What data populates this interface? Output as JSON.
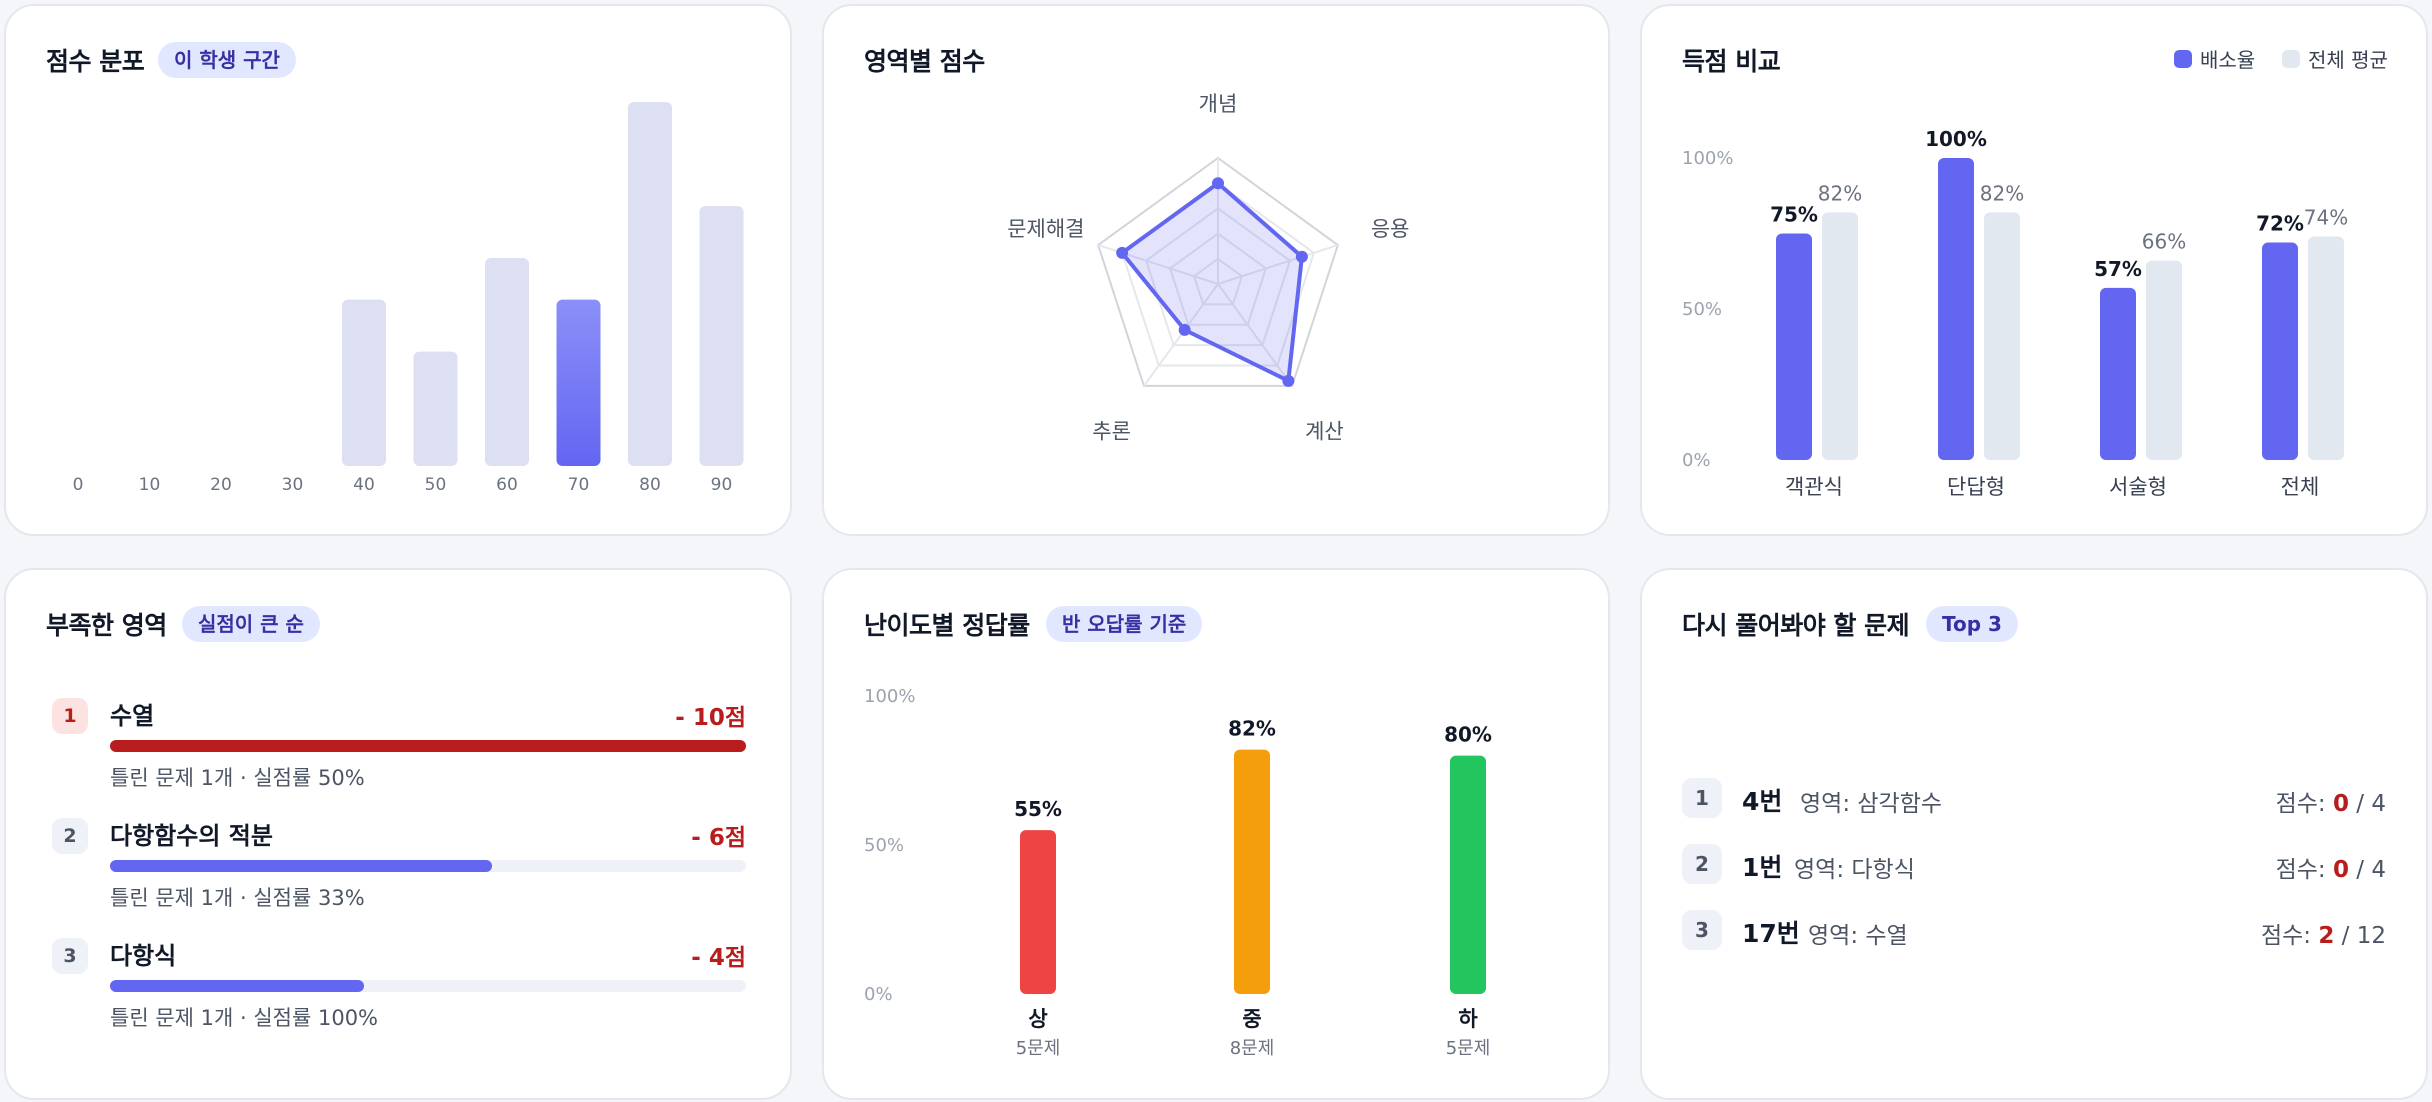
{
  "colors": {
    "accent": "#6366f1",
    "light_bar": "#dde0f3",
    "avg_bar": "#e2e8f0",
    "loss_red": "#b91c1c",
    "badge_bg": "#e0e7ff",
    "badge_text": "#3730a3",
    "hard": "#ef4444",
    "medium": "#f59e0b",
    "easy": "#22c55e"
  },
  "score_distribution": {
    "title": "점수 분포",
    "badge": "이 학생 구간",
    "chart_data": {
      "type": "bar",
      "categories": [
        "0",
        "10",
        "20",
        "30",
        "40",
        "50",
        "60",
        "70",
        "80",
        "90"
      ],
      "values": [
        0,
        0,
        0,
        0,
        16,
        11,
        20,
        16,
        35,
        25
      ],
      "highlight_category": "70"
    }
  },
  "area_scores": {
    "title": "영역별 점수",
    "chart_data": {
      "type": "radar",
      "axes": [
        "개념",
        "응용",
        "계산",
        "추론",
        "문제해결"
      ],
      "values": [
        80,
        70,
        95,
        45,
        80
      ],
      "max": 100
    }
  },
  "score_comparison": {
    "title": "득점 비교",
    "legend": [
      {
        "label": "배소율",
        "color": "#6366f1"
      },
      {
        "label": "전체 평균",
        "color": "#e2e8f0"
      }
    ],
    "chart_data": {
      "type": "bar",
      "categories": [
        "객관식",
        "단답형",
        "서술형",
        "전체"
      ],
      "y_ticks": [
        "100%",
        "50%",
        "0%"
      ],
      "ylim": [
        0,
        100
      ],
      "series": [
        {
          "name": "배소율",
          "values": [
            75,
            100,
            57,
            72
          ],
          "labels": [
            "75%",
            "100%",
            "57%",
            "72%"
          ]
        },
        {
          "name": "전체 평균",
          "values": [
            82,
            82,
            66,
            74
          ],
          "labels": [
            "82%",
            "82%",
            "66%",
            "74%"
          ]
        }
      ]
    }
  },
  "weak_areas": {
    "title": "부족한 영역",
    "badge": "실점이 큰 순",
    "items": [
      {
        "rank": "1",
        "name": "수열",
        "loss": "- 10점",
        "detail": "틀린 문제 1개 · 실점률 50%",
        "bar_fraction": 1.0
      },
      {
        "rank": "2",
        "name": "다항함수의 적분",
        "loss": "- 6점",
        "detail": "틀린 문제 1개 · 실점률 33%",
        "bar_fraction": 0.6
      },
      {
        "rank": "3",
        "name": "다항식",
        "loss": "- 4점",
        "detail": "틀린 문제 1개 · 실점률 100%",
        "bar_fraction": 0.4
      }
    ]
  },
  "difficulty": {
    "title": "난이도별 정답률",
    "badge": "반 오답률 기준",
    "chart_data": {
      "type": "bar",
      "categories": [
        "상",
        "중",
        "하"
      ],
      "sub_labels": [
        "5문제",
        "8문제",
        "5문제"
      ],
      "values": [
        55,
        82,
        80
      ],
      "labels": [
        "55%",
        "82%",
        "80%"
      ],
      "y_ticks": [
        "100%",
        "50%",
        "0%"
      ],
      "ylim": [
        0,
        100
      ],
      "colors": [
        "#ef4444",
        "#f59e0b",
        "#22c55e"
      ]
    }
  },
  "review": {
    "title": "다시 풀어봐야 할 문제",
    "badge": "Top 3",
    "score_prefix": "점수:",
    "items": [
      {
        "rank": "1",
        "question": "4번",
        "area": "영역: 삼각함수",
        "points": "0",
        "max": "/ 4"
      },
      {
        "rank": "2",
        "question": "1번",
        "area": "영역: 다항식",
        "points": "0",
        "max": "/ 4"
      },
      {
        "rank": "3",
        "question": "17번",
        "area": "영역: 수열",
        "points": "2",
        "max": "/ 12"
      }
    ]
  }
}
